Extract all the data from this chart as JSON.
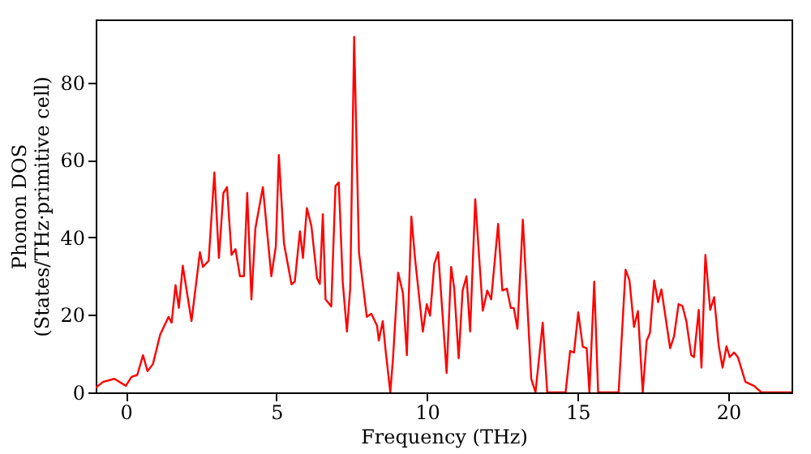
{
  "chart_data": {
    "type": "line",
    "xlabel": "Frequency (THz)",
    "ylabel": "Phonon DOS\n(States/THz·primitive cell)",
    "xlim": [
      -1,
      22.1
    ],
    "ylim": [
      0,
      96.3
    ],
    "xticks": [
      0,
      5,
      10,
      15,
      20
    ],
    "yticks": [
      0,
      20,
      40,
      60,
      80
    ],
    "grid": false,
    "marker": "none",
    "line_style": "solid",
    "x": [
      -1.0,
      -0.76,
      -0.38,
      0,
      0.19,
      0.38,
      0.57,
      0.72,
      0.9,
      1.14,
      1.42,
      1.52,
      1.65,
      1.76,
      1.89,
      2.18,
      2.46,
      2.56,
      2.75,
      2.94,
      3.09,
      3.24,
      3.36,
      3.51,
      3.64,
      3.79,
      3.92,
      4.03,
      4.17,
      4.3,
      4.55,
      4.83,
      4.98,
      5.08,
      5.25,
      5.5,
      5.61,
      5.78,
      5.88,
      6.01,
      6.16,
      6.35,
      6.44,
      6.54,
      6.63,
      6.82,
      6.96,
      7.07,
      7.2,
      7.34,
      7.45,
      7.58,
      7.74,
      8.0,
      8.15,
      8.34,
      8.4,
      8.53,
      8.62,
      8.78,
      8.87,
      9.04,
      9.2,
      9.33,
      9.48,
      9.6,
      9.86,
      9.99,
      10.1,
      10.24,
      10.37,
      10.65,
      10.8,
      10.9,
      11.05,
      11.18,
      11.31,
      11.43,
      11.6,
      11.85,
      12.0,
      12.13,
      12.36,
      12.5,
      12.65,
      12.78,
      12.88,
      13.0,
      13.18,
      13.46,
      13.6,
      13.84,
      13.99,
      14.6,
      14.75,
      14.88,
      15.02,
      15.17,
      15.3,
      15.39,
      15.55,
      15.68,
      16.36,
      16.59,
      16.72,
      16.87,
      17.0,
      17.16,
      17.29,
      17.4,
      17.54,
      17.67,
      17.78,
      18.07,
      18.2,
      18.35,
      18.48,
      18.61,
      18.77,
      18.86,
      19.02,
      19.11,
      19.24,
      19.4,
      19.53,
      19.68,
      19.81,
      19.94,
      20.05,
      20.19,
      20.32,
      20.57,
      20.85,
      21.1,
      22.1
    ],
    "series": [
      {
        "color": "#ff0000",
        "values": [
          1.2,
          2.7,
          3.5,
          1.7,
          4,
          4.5,
          9.6,
          5.5,
          7.3,
          14.9,
          19.5,
          18,
          27.7,
          21.8,
          32.7,
          18.4,
          36.2,
          32.4,
          34,
          56.8,
          34.7,
          51.5,
          53,
          35.5,
          37,
          30,
          30,
          51.5,
          24,
          42.3,
          53,
          30,
          37.7,
          61.3,
          38.5,
          27.9,
          28.6,
          41.6,
          34.7,
          47.6,
          43,
          29.4,
          28,
          46,
          24,
          22.2,
          53.3,
          54.2,
          28.6,
          15.7,
          27,
          91.8,
          36.2,
          19.5,
          20.3,
          17.2,
          13.4,
          18.4,
          11.1,
          0,
          8.8,
          30.9,
          25.6,
          9.6,
          45.4,
          34.7,
          15.7,
          22.8,
          19.8,
          33.1,
          36.2,
          5,
          32.4,
          27,
          8.8,
          26.3,
          30,
          15.7,
          49.9,
          21.1,
          26.3,
          24,
          43.5,
          26.3,
          26.8,
          21.8,
          21.8,
          16.4,
          44.6,
          3.5,
          0,
          18,
          0,
          0,
          10.7,
          10.3,
          20.7,
          11.8,
          11.4,
          0,
          28.6,
          0,
          0,
          31.7,
          28.9,
          16.9,
          21,
          0,
          13.3,
          15.4,
          28.9,
          23.3,
          26.6,
          11.4,
          14.5,
          22.8,
          22.3,
          18.3,
          9.6,
          9.1,
          21.3,
          6.4,
          35.5,
          21.3,
          24.6,
          12.2,
          6.4,
          11.9,
          9.1,
          10.3,
          9.1,
          2.7,
          1.7,
          0,
          0
        ]
      }
    ]
  }
}
